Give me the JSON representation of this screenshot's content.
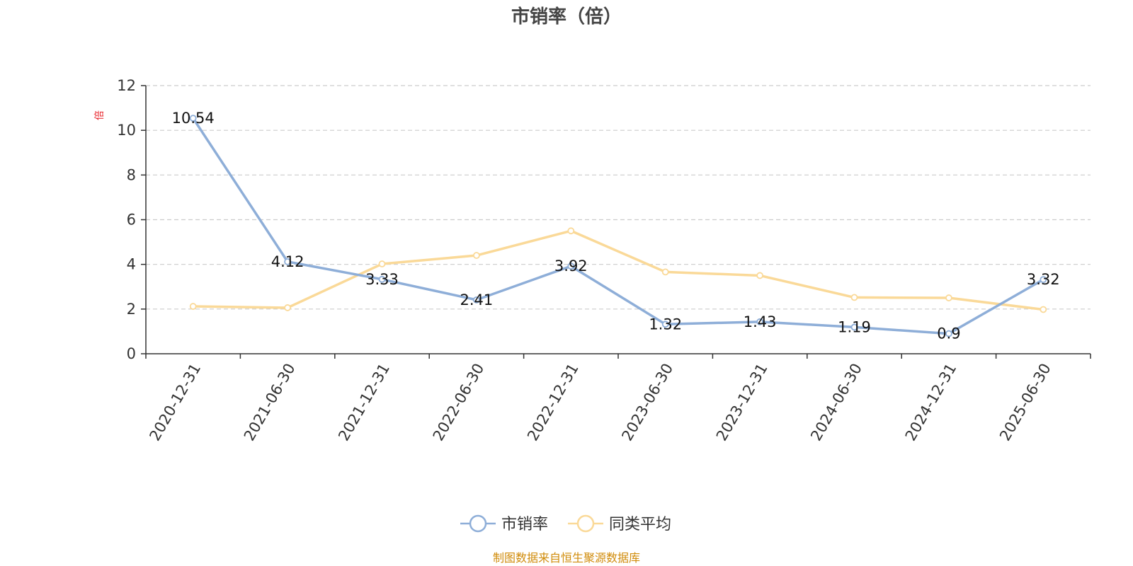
{
  "chart_data": {
    "type": "line",
    "title": "市销率（倍）",
    "ylabel": "倍",
    "xlabel": "",
    "categories": [
      "2020-12-31",
      "2021-06-30",
      "2021-12-31",
      "2022-06-30",
      "2022-12-31",
      "2023-06-30",
      "2023-12-31",
      "2024-06-30",
      "2024-12-31",
      "2025-06-30"
    ],
    "ylim": [
      0,
      12
    ],
    "yticks": [
      0,
      2,
      4,
      6,
      8,
      10,
      12
    ],
    "grid": true,
    "legend_position": "bottom-center",
    "series": [
      {
        "name": "市销率",
        "color": "#8eaed8",
        "values": [
          10.54,
          4.12,
          3.33,
          2.41,
          3.92,
          1.32,
          1.43,
          1.19,
          0.9,
          3.32
        ],
        "labels": [
          "10.54",
          "4.12",
          "3.33",
          "2.41",
          "3.92",
          "1.32",
          "1.43",
          "1.19",
          "0.9",
          "3.32"
        ],
        "show_labels": true
      },
      {
        "name": "同类平均",
        "color": "#fad998",
        "values": [
          2.12,
          2.06,
          4.02,
          4.4,
          5.5,
          3.66,
          3.5,
          2.52,
          2.5,
          1.98
        ],
        "show_labels": false
      }
    ]
  },
  "footer": {
    "source": "制图数据来自恒生聚源数据库"
  },
  "colors": {
    "title": "#444444",
    "axis": "#333333",
    "grid": "#cccccc",
    "unit_label": "#e8232a",
    "source_text": "#d08b0a"
  }
}
